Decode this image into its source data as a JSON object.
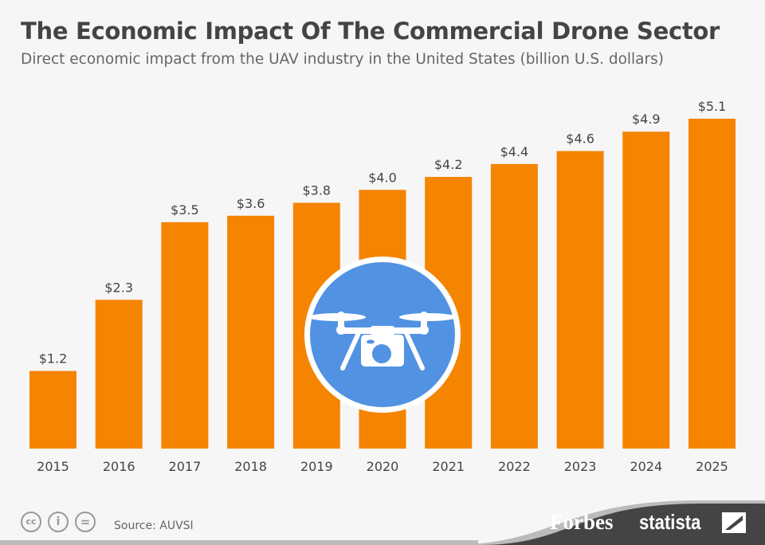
{
  "header": {
    "title": "The Economic Impact Of The Commercial Drone Sector",
    "subtitle": "Direct economic impact from the UAV industry in the United States (billion U.S. dollars)"
  },
  "chart_data": {
    "type": "bar",
    "title": "The Economic Impact Of The Commercial Drone Sector",
    "subtitle": "Direct economic impact from the UAV industry in the United States (billion U.S. dollars)",
    "categories": [
      "2015",
      "2016",
      "2017",
      "2018",
      "2019",
      "2020",
      "2021",
      "2022",
      "2023",
      "2024",
      "2025"
    ],
    "values": [
      1.2,
      2.3,
      3.5,
      3.6,
      3.8,
      4.0,
      4.2,
      4.4,
      4.6,
      4.9,
      5.1
    ],
    "data_labels": [
      "$1.2",
      "$2.3",
      "$3.5",
      "$3.6",
      "$3.8",
      "$4.0",
      "$4.2",
      "$4.4",
      "$4.6",
      "$4.9",
      "$5.1"
    ],
    "xlabel": "",
    "ylabel": "",
    "ylim": [
      0,
      5.1
    ],
    "grid": false,
    "bar_color": "#f58400",
    "icon": "drone-camera-icon",
    "icon_color": "#5192e2"
  },
  "footer": {
    "source": "Source: AUVSI",
    "cc_icons": [
      "cc-icon",
      "attribution-icon",
      "no-derivatives-icon"
    ],
    "cc_text": "cc",
    "eq_text": "=",
    "forbes": "Forbes",
    "statista": "statista"
  }
}
